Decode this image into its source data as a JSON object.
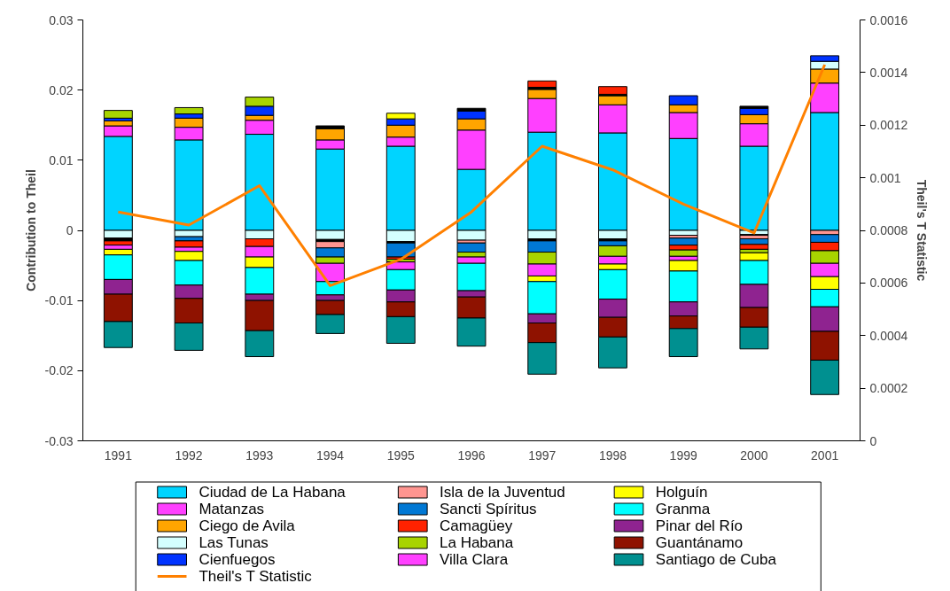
{
  "chart_data": {
    "type": "bar",
    "stacked": true,
    "ylabel": "Contribution to Theil",
    "y2label": "Theil's T Statistic",
    "categories": [
      "1991",
      "1992",
      "1993",
      "1994",
      "1995",
      "1996",
      "1997",
      "1998",
      "1999",
      "2000",
      "2001"
    ],
    "ylim": [
      -0.03,
      0.03
    ],
    "yticks": [
      -0.03,
      -0.02,
      -0.01,
      0,
      0.01,
      0.02,
      0.03
    ],
    "y2lim": [
      0,
      0.0016
    ],
    "y2ticks": [
      0,
      0.0002,
      0.0004,
      0.0006,
      0.0008,
      0.001,
      0.0012,
      0.0014,
      0.0016
    ],
    "grid": false,
    "legend": "bottom",
    "series": [
      {
        "name": "Ciudad de La Habana",
        "color": "#00d4ff",
        "values": [
          0.0134,
          0.0129,
          0.0137,
          0.0116,
          0.012,
          0.0087,
          0.014,
          0.0139,
          0.0131,
          0.012,
          0.0168
        ]
      },
      {
        "name": "Matanzas",
        "color": "#ff40ff",
        "values": [
          0.0015,
          0.0018,
          0.002,
          0.0013,
          0.0013,
          0.0056,
          0.0048,
          0.004,
          0.0037,
          0.0032,
          0.0042
        ]
      },
      {
        "name": "Ciego de Avila",
        "color": "#ffa500",
        "values": [
          0.0007,
          0.0013,
          0.0007,
          0.0016,
          0.0017,
          0.0016,
          0.0013,
          0.0013,
          0.0011,
          0.0013,
          0.002
        ]
      },
      {
        "name": "Las Tunas",
        "color": "#d4ffff",
        "values": [
          -0.0011,
          -0.0009,
          -0.0012,
          -0.0013,
          -0.0016,
          -0.0014,
          -0.0012,
          -0.0012,
          -0.0007,
          -0.0006,
          0.0011
        ]
      },
      {
        "name": "Cienfuegos",
        "color": "#0033ff",
        "values": [
          0.0004,
          0.0006,
          0.0013,
          null,
          0.0009,
          0.0011,
          null,
          null,
          0.0013,
          0.0009,
          0.0008
        ]
      },
      {
        "name": null,
        "color": "#000000",
        "values": [
          null,
          null,
          null,
          0.0004,
          null,
          0.0004,
          0.0003,
          0.0002,
          null,
          0.0003,
          null
        ]
      },
      {
        "name": null,
        "color": "#000000",
        "values": [
          -0.0004,
          null,
          null,
          -0.0003,
          -0.0002,
          null,
          -0.0003,
          -0.0003,
          null,
          -0.0001,
          null
        ]
      },
      {
        "name": "Isla de la Juventud",
        "color": "#ff9590",
        "values": [
          null,
          null,
          null,
          -0.0009,
          null,
          -0.0004,
          null,
          null,
          -0.0004,
          -0.0005,
          -0.0006
        ]
      },
      {
        "name": "Sancti Spíritus",
        "color": "#0078d4",
        "values": [
          null,
          -0.0006,
          null,
          -0.0013,
          -0.002,
          -0.0013,
          -0.0016,
          -0.0007,
          -0.001,
          -0.0008,
          -0.0011
        ]
      },
      {
        "name": "Camagüey",
        "color": "#ff2200",
        "values": [
          -0.0006,
          -0.0009,
          -0.0011,
          null,
          -0.0003,
          null,
          0.0009,
          0.0011,
          -0.0007,
          -0.0007,
          -0.0012
        ]
      },
      {
        "name": "La Habana",
        "color": "#a8d400",
        "values": [
          0.0011,
          0.0009,
          0.0013,
          -0.0009,
          -0.0004,
          -0.0007,
          -0.0017,
          -0.0015,
          -0.0009,
          -0.0005,
          -0.0018
        ]
      },
      {
        "name": "Villa Clara",
        "color": "#ff40ff",
        "values": [
          -0.0006,
          -0.0006,
          -0.0015,
          -0.0026,
          -0.0011,
          -0.0009,
          -0.0017,
          -0.0011,
          -0.0006,
          null,
          -0.0019
        ]
      },
      {
        "name": "Holguín",
        "color": "#ffff00",
        "values": [
          -0.0008,
          -0.0013,
          -0.0015,
          null,
          0.0008,
          null,
          -0.0008,
          -0.0008,
          -0.0015,
          -0.0011,
          -0.0018
        ]
      },
      {
        "name": "Granma",
        "color": "#00ffff",
        "values": [
          -0.0035,
          -0.0035,
          -0.0038,
          -0.0019,
          -0.0029,
          -0.0039,
          -0.0046,
          -0.0042,
          -0.0044,
          -0.0034,
          -0.0025
        ]
      },
      {
        "name": "Pinar del Río",
        "color": "#8f2390",
        "values": [
          -0.0021,
          -0.0019,
          -0.0009,
          -0.0008,
          -0.0017,
          -0.0009,
          -0.0013,
          -0.0026,
          -0.002,
          -0.0033,
          -0.0035
        ]
      },
      {
        "name": "Guantánamo",
        "color": "#8f1200",
        "values": [
          -0.0039,
          -0.0035,
          -0.0043,
          -0.002,
          -0.0021,
          -0.003,
          -0.0028,
          -0.0028,
          -0.0018,
          -0.0028,
          -0.0041
        ]
      },
      {
        "name": "Santiago de Cuba",
        "color": "#009090",
        "values": [
          -0.0037,
          -0.0039,
          -0.0037,
          -0.0027,
          -0.0038,
          -0.004,
          -0.0045,
          -0.0044,
          -0.004,
          -0.0031,
          -0.0049
        ]
      },
      {
        "name": "Theil's T Statistic",
        "type": "line",
        "axis": "y2",
        "color": "#ff8000",
        "values": [
          0.00087,
          0.00082,
          0.00097,
          0.00059,
          0.00069,
          0.00087,
          0.00112,
          0.00103,
          0.0009,
          0.00079,
          0.00143
        ]
      }
    ]
  }
}
